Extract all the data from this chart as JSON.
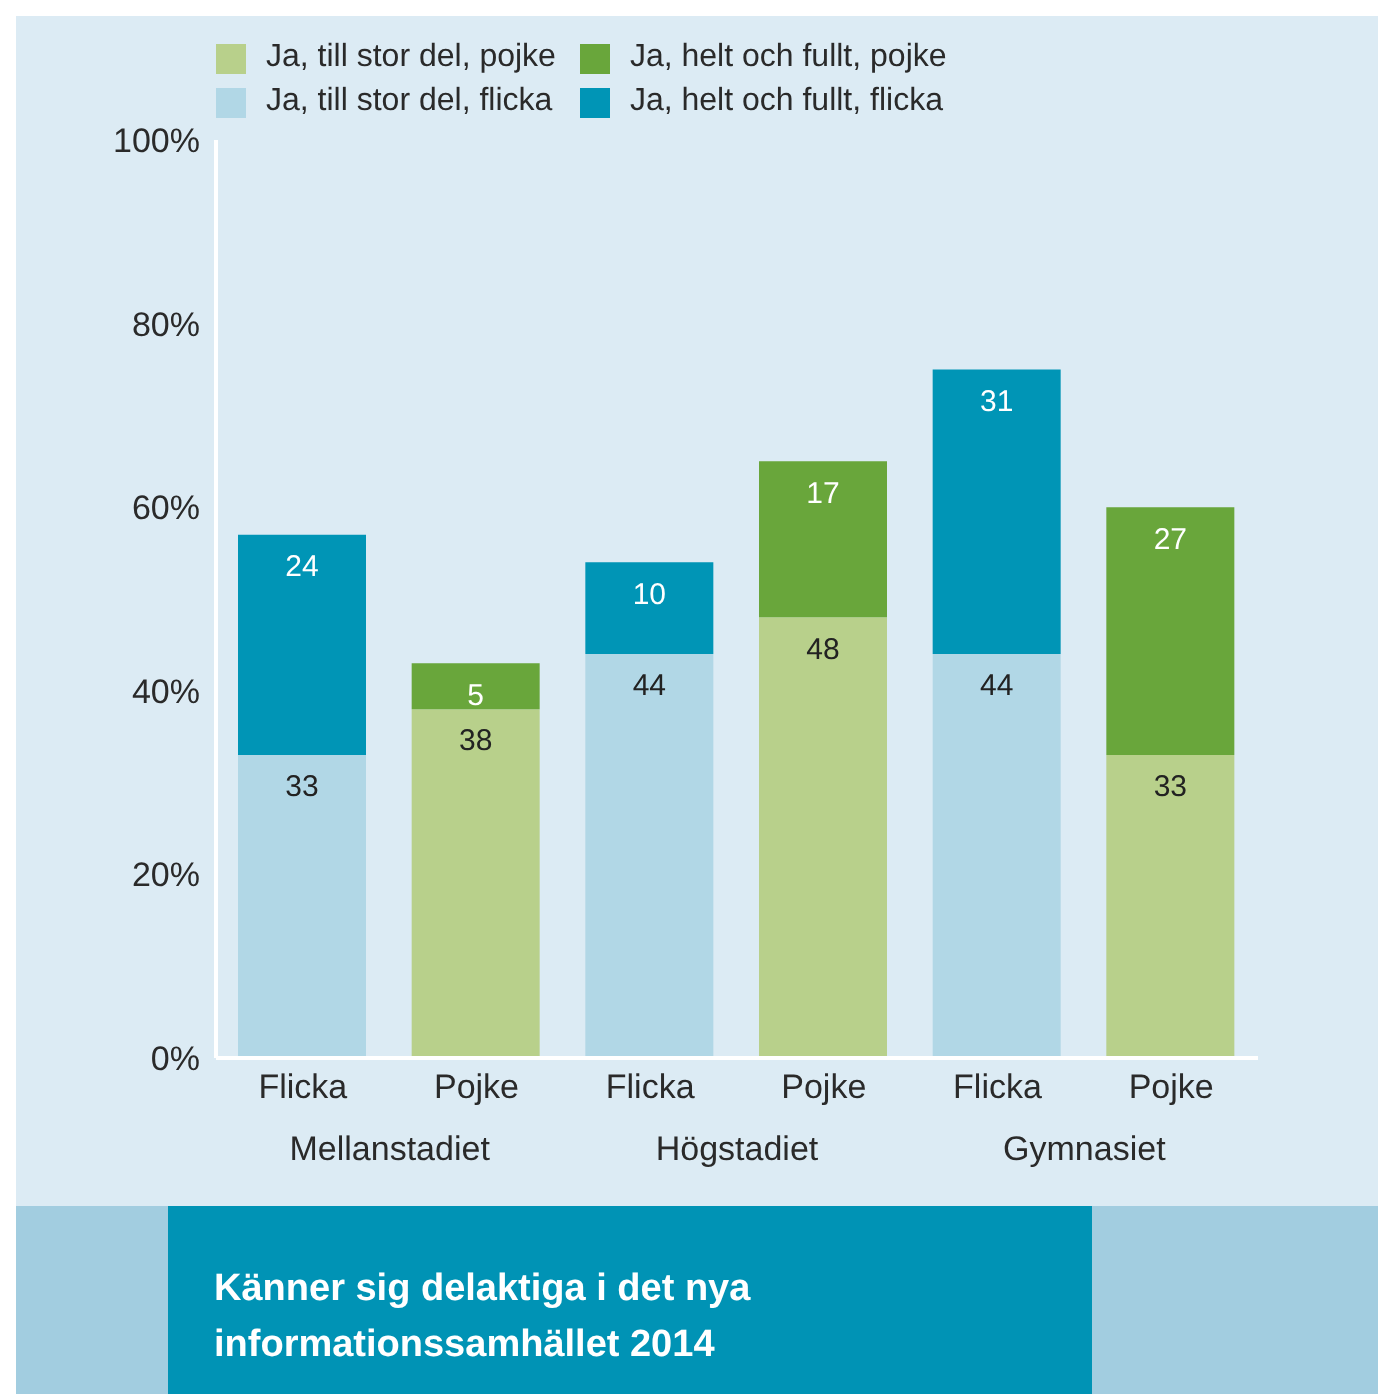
{
  "chart_data": {
    "type": "bar",
    "title": "Känner sig delaktiga i det nya informationssamhället 2014",
    "categories": [
      "Flicka",
      "Pojke",
      "Flicka",
      "Pojke",
      "Flicka",
      "Pojke"
    ],
    "annotations": [
      "Mellanstadiet",
      "Högstadiet",
      "Gymnasiet"
    ],
    "series": [
      {
        "name": "Ja, till stor del, pojke",
        "color": "#b8d08b",
        "values": [
          null,
          38,
          null,
          48,
          null,
          33
        ]
      },
      {
        "name": "Ja, helt och fullt, pojke",
        "color": "#69a63b",
        "values": [
          null,
          5,
          null,
          17,
          null,
          27
        ]
      },
      {
        "name": "Ja, till stor del, flicka",
        "color": "#b1d7e6",
        "values": [
          33,
          null,
          44,
          null,
          44,
          null
        ]
      },
      {
        "name": "Ja, helt och fullt, flicka",
        "color": "#0095b6",
        "values": [
          24,
          null,
          10,
          null,
          31,
          null
        ]
      }
    ],
    "stacked": true,
    "data_labels": true,
    "legend": "top left",
    "grid": false,
    "ylim": [
      0,
      100
    ],
    "yticks": [
      {
        "value": 0,
        "label": "0%"
      },
      {
        "value": 20,
        "label": "20%"
      },
      {
        "value": 40,
        "label": "40%"
      },
      {
        "value": 60,
        "label": "60%"
      },
      {
        "value": 80,
        "label": "80%"
      },
      {
        "value": 100,
        "label": "100%"
      }
    ]
  }
}
